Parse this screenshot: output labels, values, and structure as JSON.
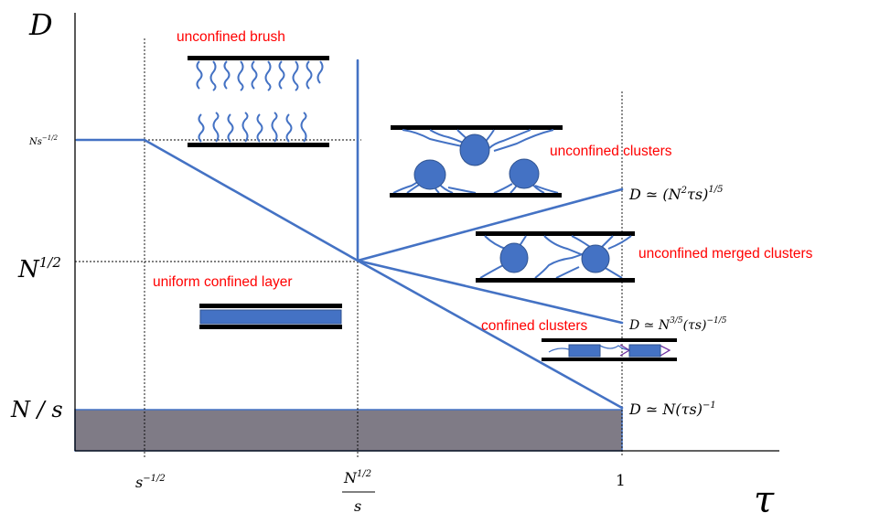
{
  "axes": {
    "y_label": "D",
    "x_label": "τ",
    "y_ticks": {
      "ns": {
        "base": "Ns",
        "sup": "−1/2"
      },
      "n_half": {
        "base": "N",
        "sup": "1/2"
      },
      "n_over_s": "N / s"
    },
    "x_ticks": {
      "s_neg_half": {
        "base": "s",
        "sup": "−1/2"
      },
      "n_half_over_s": {
        "num_base": "N",
        "num_sup": "1/2",
        "den": "s"
      },
      "one": "1"
    }
  },
  "regions": {
    "unconfined_brush": "unconfined brush",
    "uniform_confined_layer": "uniform confined layer",
    "unconfined_clusters": "unconfined clusters",
    "unconfined_merged_clusters": "unconfined merged clusters",
    "confined_clusters": "confined clusters"
  },
  "equations": {
    "upper": {
      "a": "D ≃ (N",
      "a_sup": "2",
      "b": "τs)",
      "b_sup": "1/5"
    },
    "middle": {
      "a": "D ≃ N",
      "a_sup": "3/5",
      "b": "(τs)",
      "b_sup": "−1/5"
    },
    "lower": {
      "a": "D ≃ N(τs)",
      "a_sup": "−1"
    }
  },
  "colors": {
    "boundary_lines": "#4472c4",
    "region_labels": "#ff0000",
    "excluded_band": "#7f7b86"
  },
  "icons": [
    "brush-chains-icon",
    "cluster-blob-icon",
    "confined-layer-icon"
  ]
}
